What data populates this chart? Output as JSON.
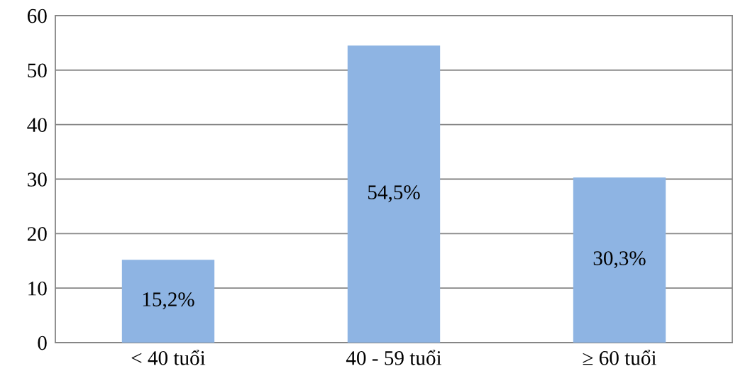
{
  "chart_data": {
    "type": "bar",
    "categories": [
      "< 40 tuổi",
      "40 - 59 tuổi",
      "≥ 60 tuổi"
    ],
    "values": [
      15.2,
      54.5,
      30.3
    ],
    "value_labels": [
      "15,2%",
      "54,5%",
      "30,3%"
    ],
    "color": "#8eb4e3",
    "ylim": [
      0,
      60
    ],
    "yticks": [
      0,
      10,
      20,
      30,
      40,
      50,
      60
    ],
    "grid": "y",
    "legend": false
  }
}
